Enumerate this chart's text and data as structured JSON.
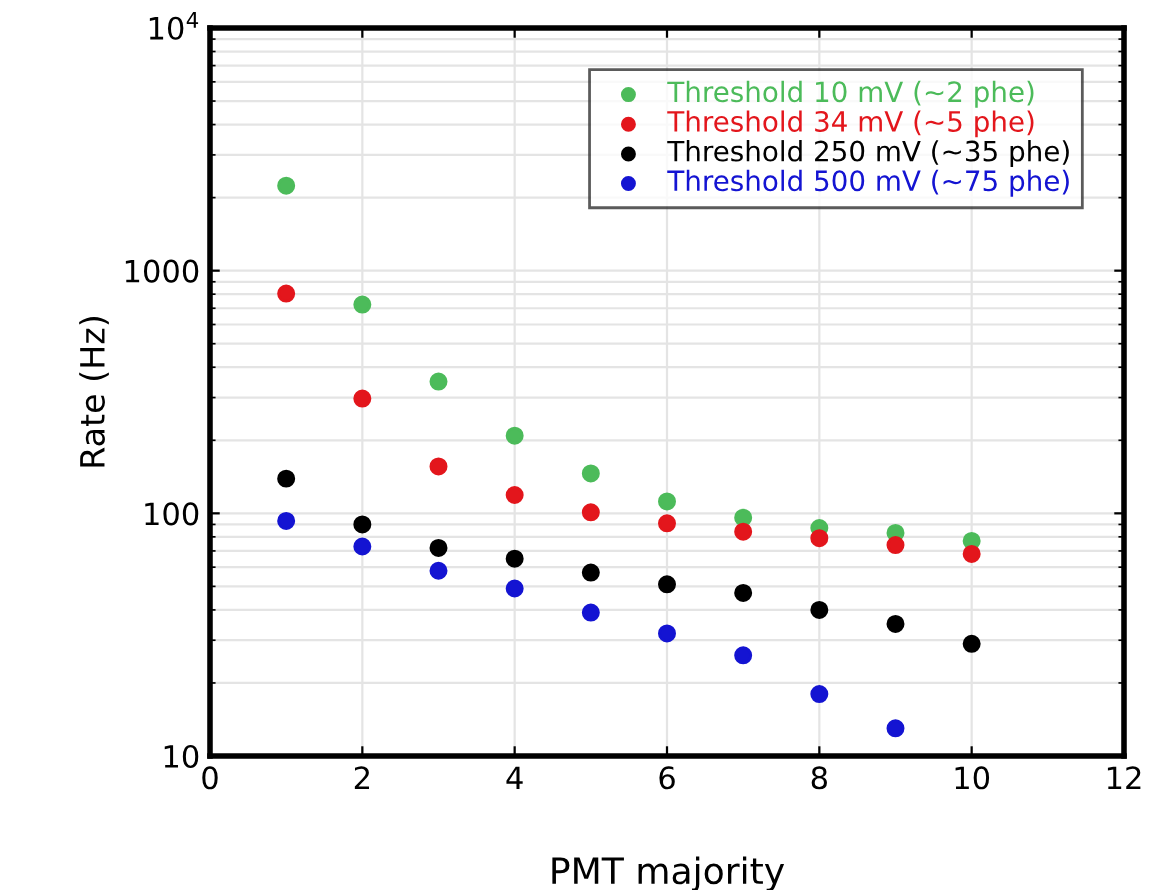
{
  "chart_data": {
    "type": "scatter",
    "xlabel": "PMT majority",
    "ylabel": "Rate (Hz)",
    "x": [
      1,
      2,
      3,
      4,
      5,
      6,
      7,
      8,
      9,
      10
    ],
    "series": [
      {
        "name": "Threshold 10 mV (~2 phe)",
        "color": "#4cbb5a",
        "values": [
          2240,
          725,
          349,
          209,
          146,
          112,
          96,
          87,
          83,
          77
        ]
      },
      {
        "name": "Threshold 34 mV (~5 phe)",
        "color": "#e3161c",
        "values": [
          805,
          297,
          156,
          119,
          101,
          91,
          84,
          79,
          74,
          68
        ]
      },
      {
        "name": "Threshold 250 mV (~35 phe)",
        "color": "#000000",
        "values": [
          139,
          90,
          72,
          65,
          57,
          51,
          47,
          40,
          35,
          29
        ]
      },
      {
        "name": "Threshold 500 mV (~75 phe)",
        "color": "#1414d2",
        "values": [
          93,
          73,
          58,
          49,
          39,
          32,
          26,
          18,
          13,
          null
        ]
      }
    ],
    "xlim": [
      0,
      12
    ],
    "xticks": [
      0,
      2,
      4,
      6,
      8,
      10,
      12
    ],
    "ylim": [
      10,
      10000
    ],
    "yticks": [
      10,
      100,
      1000,
      {
        "value": 10000,
        "label": "10$^{4}$"
      }
    ],
    "log": "y",
    "grid": true,
    "legend": "top right",
    "marker": "circle"
  }
}
